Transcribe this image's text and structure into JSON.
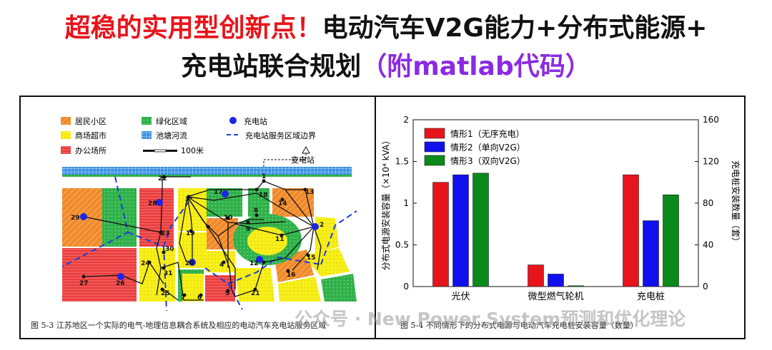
{
  "title": {
    "line1_red": "超稳的实用型创新点！",
    "line1_black": "电动汽车V2G能力+分布式能源+",
    "line2_black": "充电站联合规划",
    "line2_purple": "（附matlab代码）"
  },
  "map": {
    "legend": {
      "residential": "居民小区",
      "green": "绿化区域",
      "station": "充电站",
      "commercial": "商场超市",
      "pond": "池塘河流",
      "boundary": "充电站服务区域边界",
      "office": "办公场所",
      "scale": "100米"
    },
    "substation_label": "变电站",
    "node_labels": [
      "1",
      "2",
      "3",
      "4",
      "5",
      "6",
      "7",
      "8",
      "9",
      "10",
      "11",
      "12",
      "13",
      "14",
      "15",
      "16",
      "17",
      "18",
      "19",
      "20",
      "21",
      "22",
      "23",
      "24",
      "25",
      "26",
      "27",
      "28",
      "29",
      "30",
      "31"
    ],
    "caption": "图 5-3  江苏地区一个实际的电气-地理信息耦合系统及相应的电动汽车充电站服务区域"
  },
  "chart_data": {
    "type": "bar",
    "categories": [
      "光伏",
      "微型燃气轮机",
      "充电桩"
    ],
    "series": [
      {
        "name": "情形1（无序充电）",
        "color": "#e8141b",
        "values": [
          1.25,
          0.26,
          1.34
        ]
      },
      {
        "name": "情形2（单向V2G）",
        "color": "#1010ee",
        "values": [
          1.34,
          0.15,
          0.79
        ]
      },
      {
        "name": "情形3（双向V2G）",
        "color": "#0a8a1a",
        "values": [
          1.36,
          0.01,
          1.1
        ]
      }
    ],
    "ylabel": "分布式电源安装容量（×10⁴ kVA）",
    "ylabel_right": "充电桩安装数量（套）",
    "ylim": [
      0,
      2
    ],
    "yticks": [
      "0",
      "0.5",
      "1",
      "1.5",
      "2"
    ],
    "ylim_right": [
      0,
      160
    ],
    "yticks_right": [
      "0",
      "40",
      "80",
      "120",
      "160"
    ],
    "legend_position": "top-left",
    "caption": "图 5-4  不同情形下的分布式电源与电动汽车充电桩安装容量（数量）"
  },
  "watermark": "公众号 · New Power System预测和优化理论"
}
